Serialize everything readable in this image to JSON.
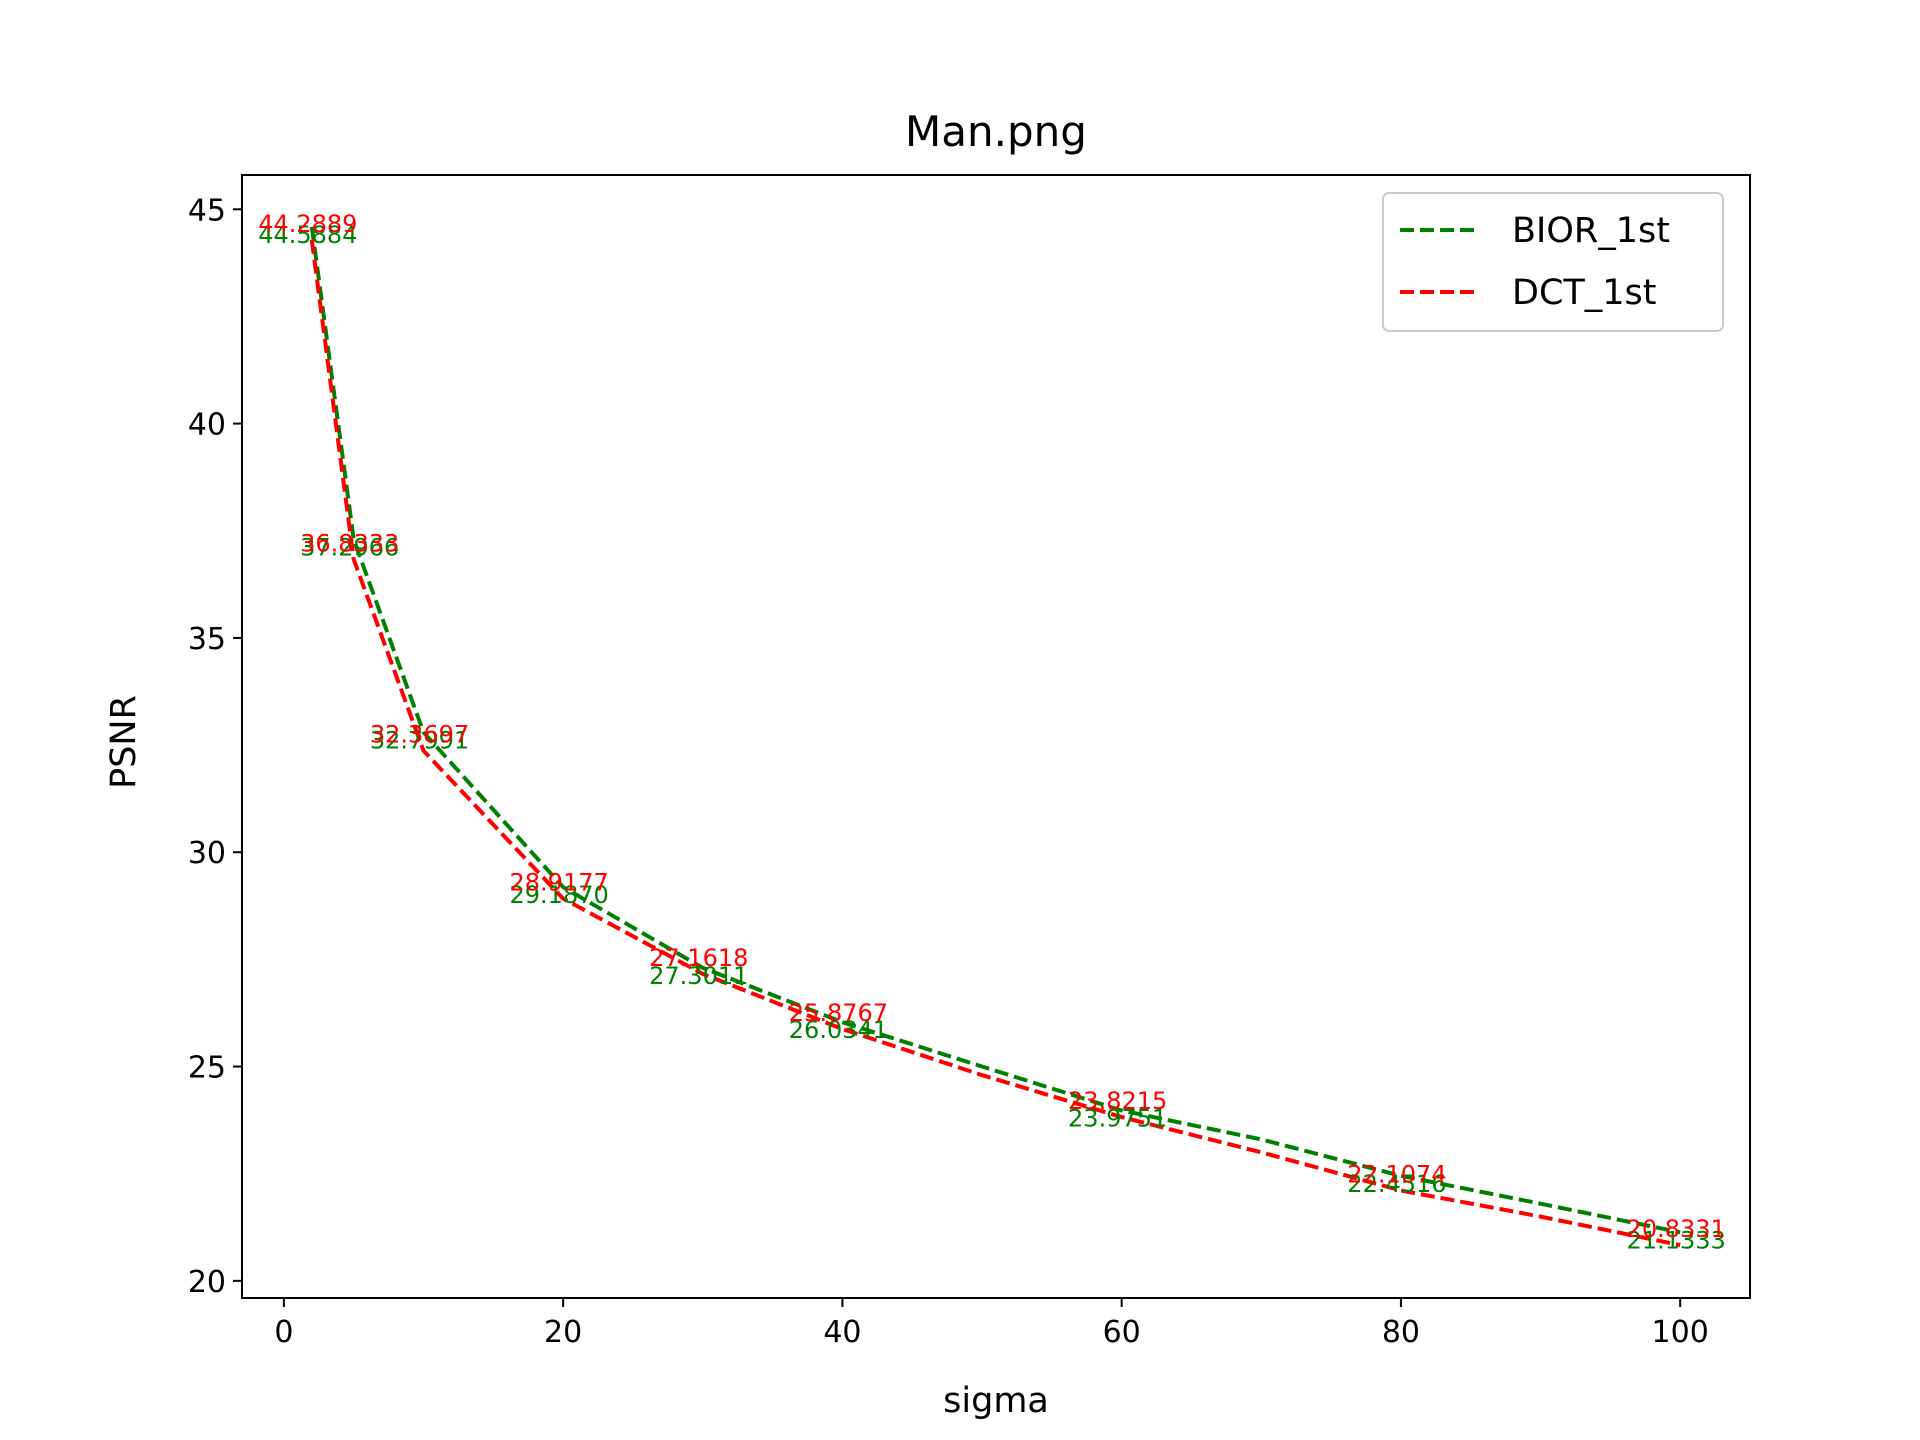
{
  "chart_data": {
    "type": "line",
    "title": "Man.png",
    "xlabel": "sigma",
    "ylabel": "PSNR",
    "xlim": [
      -3,
      105
    ],
    "ylim": [
      19.6,
      45.8
    ],
    "x_ticks": [
      0,
      20,
      40,
      60,
      80,
      100
    ],
    "y_ticks": [
      20,
      25,
      30,
      35,
      40,
      45
    ],
    "grid": false,
    "legend_position": "top-right",
    "series": [
      {
        "name": "BIOR_1st",
        "color": "#008000",
        "line_style": "dashed",
        "x": [
          2,
          5,
          10,
          20,
          30,
          40,
          50,
          60,
          70,
          80,
          90,
          100
        ],
        "y": [
          44.5884,
          37.2966,
          32.7991,
          29.187,
          27.3011,
          26.0341,
          25.0,
          23.9751,
          23.3,
          22.4516,
          21.8,
          21.1333
        ],
        "labels": [
          "44.5884",
          "37.2966",
          "32.7991",
          "29.1870",
          "27.3011",
          "26.0341",
          null,
          "23.9751",
          null,
          "22.4516",
          null,
          "21.1333"
        ]
      },
      {
        "name": "DCT_1st",
        "color": "#ff0000",
        "line_style": "dashed",
        "x": [
          2,
          5,
          10,
          20,
          30,
          40,
          50,
          60,
          70,
          80,
          90,
          100
        ],
        "y": [
          44.2889,
          36.8333,
          32.3697,
          28.9177,
          27.1618,
          25.8767,
          24.8,
          23.8215,
          23.0,
          22.1074,
          21.5,
          20.8331
        ],
        "labels": [
          "44.2889",
          "36.8333",
          "32.3697",
          "28.9177",
          "27.1618",
          "25.8767",
          null,
          "23.8215",
          null,
          "22.1074",
          null,
          "20.8331"
        ]
      }
    ]
  }
}
